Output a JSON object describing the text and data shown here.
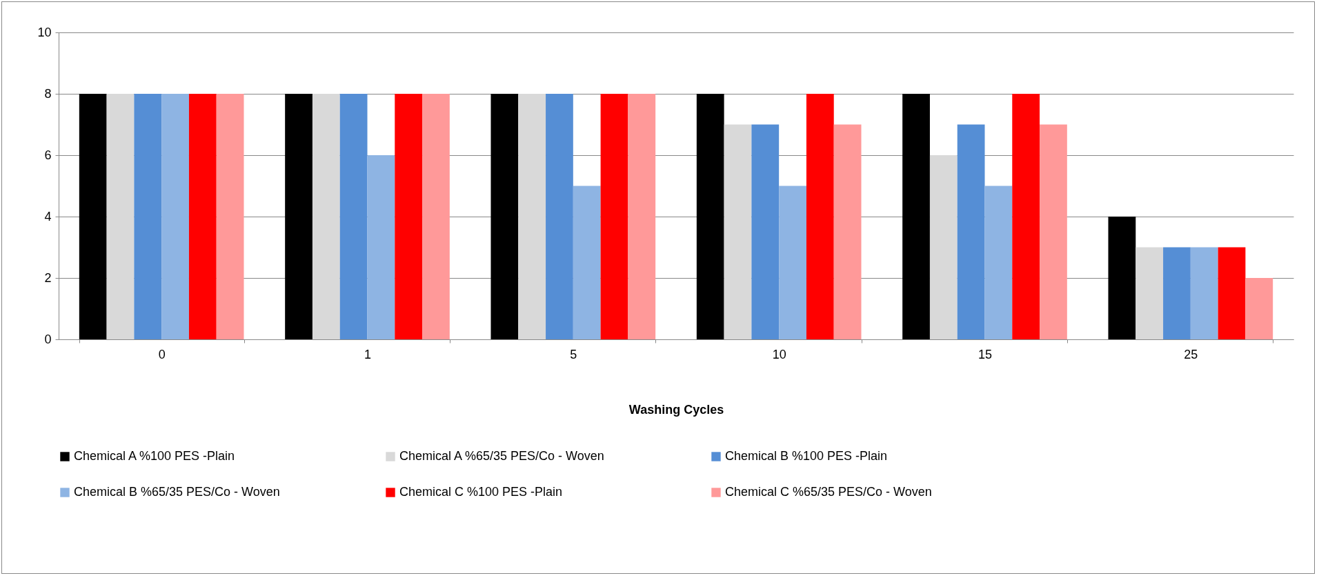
{
  "chart_data": {
    "type": "bar",
    "xlabel": "Washing Cycles",
    "categories": [
      "0",
      "1",
      "5",
      "10",
      "15",
      "25"
    ],
    "series": [
      {
        "name": "Chemical A %100 PES -Plain",
        "color": "#000000",
        "values": [
          8,
          8,
          8,
          8,
          8,
          4
        ]
      },
      {
        "name": "Chemical A %65/35 PES/Co - Woven",
        "color": "#d9d9d9",
        "values": [
          8,
          8,
          8,
          7,
          6,
          3
        ]
      },
      {
        "name": "Chemical B %100 PES -Plain",
        "color": "#558ed5",
        "values": [
          8,
          8,
          8,
          7,
          7,
          3
        ]
      },
      {
        "name": "Chemical B %65/35 PES/Co - Woven",
        "color": "#8eb4e3",
        "values": [
          8,
          6,
          5,
          5,
          5,
          3
        ]
      },
      {
        "name": "Chemical C %100 PES -Plain",
        "color": "#ff0000",
        "values": [
          8,
          8,
          8,
          8,
          8,
          3
        ]
      },
      {
        "name": "Chemical C %65/35 PES/Co - Woven",
        "color": "#ff9999",
        "values": [
          8,
          8,
          8,
          7,
          7,
          2
        ]
      }
    ],
    "ylim": [
      0,
      10
    ],
    "yticks": [
      0,
      2,
      4,
      6,
      8,
      10
    ],
    "grid": "y",
    "legend": "bottom"
  }
}
